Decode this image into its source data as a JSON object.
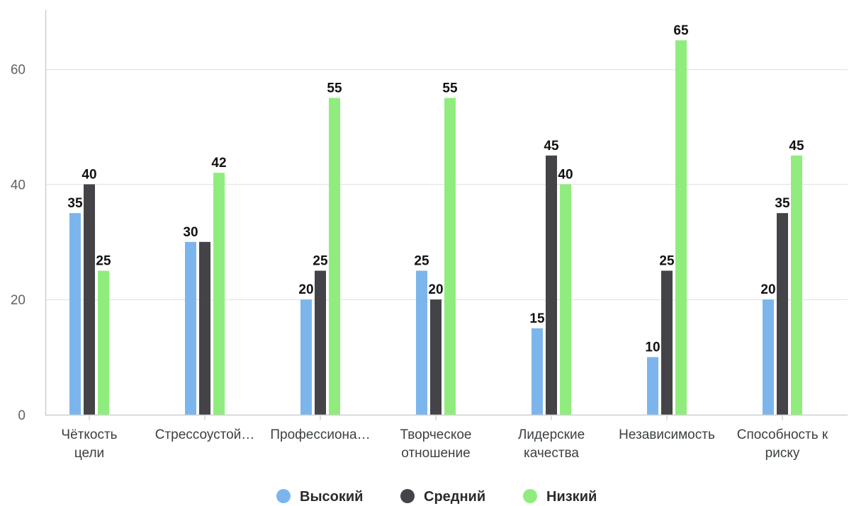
{
  "chart_data": {
    "type": "bar",
    "categories": [
      "Чёткость цели",
      "Стрессоустой…",
      "Профессиона…",
      "Творческое отношение",
      "Лидерские качества",
      "Независимость",
      "Способность к риску"
    ],
    "series": [
      {
        "name": "Высокий",
        "color": "#7cb5ec",
        "values": [
          35,
          30,
          20,
          25,
          15,
          10,
          20
        ]
      },
      {
        "name": "Средний",
        "color": "#434348",
        "values": [
          40,
          30,
          25,
          20,
          45,
          25,
          35
        ]
      },
      {
        "name": "Низкий",
        "color": "#90ed7d",
        "values": [
          25,
          42,
          55,
          55,
          40,
          65,
          45
        ]
      }
    ],
    "data_labels": [
      [
        "35",
        "30",
        "20",
        "25",
        "15",
        "10",
        "20"
      ],
      [
        "40",
        "",
        "25",
        "20",
        "45",
        "25",
        "35"
      ],
      [
        "25",
        "42",
        "55",
        "55",
        "40",
        "65",
        "45"
      ]
    ],
    "y_ticks": [
      0,
      20,
      40,
      60
    ],
    "ylim": [
      0,
      72
    ],
    "grid": true,
    "legend_position": "bottom-center",
    "title": "",
    "xlabel": "",
    "ylabel": ""
  }
}
